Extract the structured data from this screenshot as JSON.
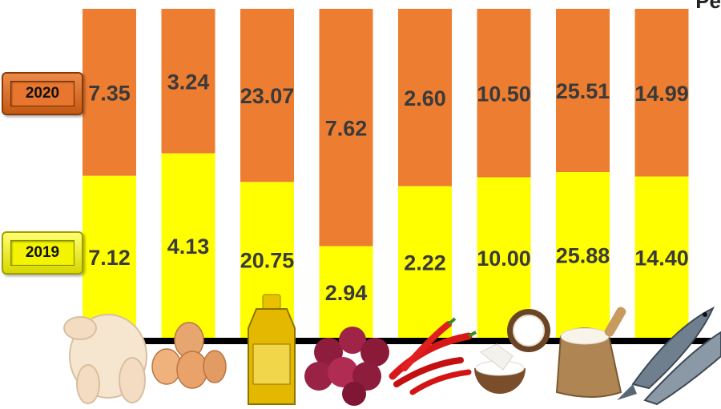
{
  "chart_data": {
    "type": "bar",
    "stacked": true,
    "categories": [
      "chicken",
      "eggs",
      "cooking oil",
      "shallots",
      "chilies",
      "coconut",
      "rice",
      "fish"
    ],
    "series": [
      {
        "name": "2019",
        "values": [
          7.12,
          4.13,
          20.75,
          2.94,
          2.22,
          10.0,
          25.88,
          14.4
        ],
        "labels": [
          "7.12",
          "4.13",
          "20.75",
          "2.94",
          "2.22",
          "10.00",
          "25.88",
          "14.40"
        ],
        "color": "#ffff00"
      },
      {
        "name": "2020",
        "values": [
          7.35,
          3.24,
          23.07,
          7.62,
          2.6,
          10.5,
          25.51,
          14.99
        ],
        "labels": [
          "7.35",
          "3.24",
          "23.07",
          "7.62",
          "2.60",
          "10.50",
          "25.51",
          "14.99"
        ],
        "color": "#ed7d31"
      }
    ],
    "title": "",
    "xlabel": "",
    "ylabel": "",
    "grid": false,
    "legend_placement": "left"
  },
  "legend": {
    "label_2020": "2020",
    "label_2019": "2019"
  },
  "corner_text": "Pe",
  "colors": {
    "orange": "#ed7d31",
    "yellow": "#ffff00",
    "baseline": "#000000"
  },
  "icons": [
    "chicken-icon",
    "eggs-icon",
    "cooking-oil-icon",
    "shallots-icon",
    "chilies-icon",
    "coconut-icon",
    "rice-sack-icon",
    "fish-icon"
  ]
}
